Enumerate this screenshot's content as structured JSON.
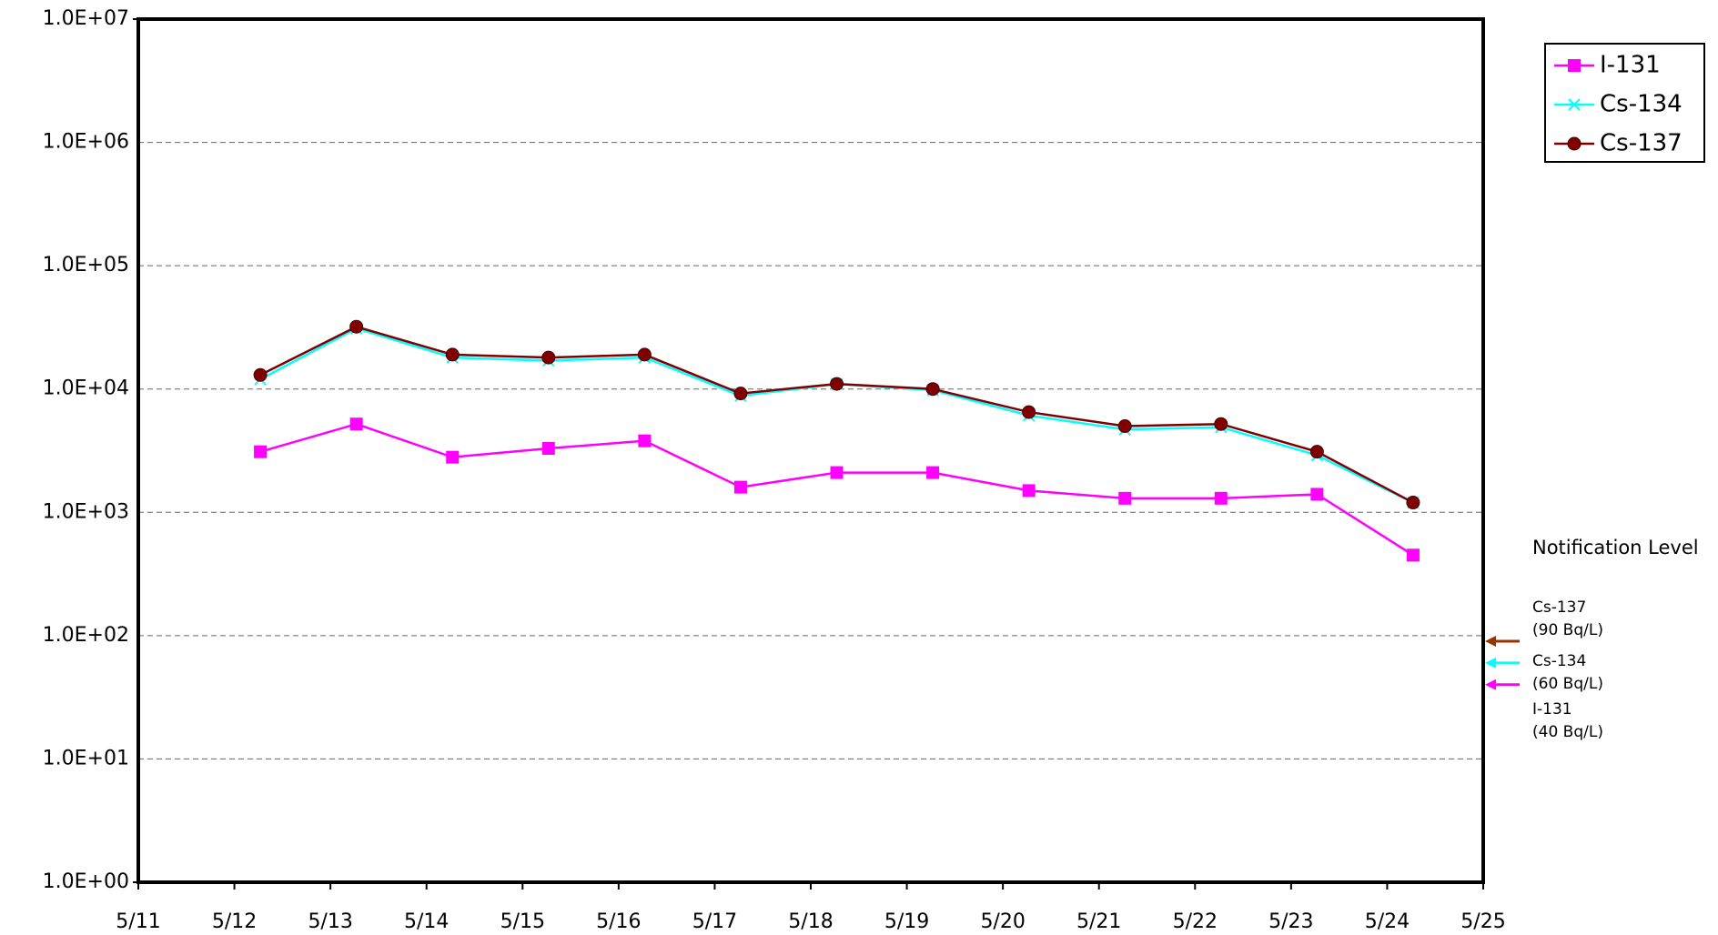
{
  "chart_data": {
    "type": "line",
    "xticks": [
      "5/11",
      "5/12",
      "5/13",
      "5/14",
      "5/15",
      "5/16",
      "5/17",
      "5/18",
      "5/19",
      "5/20",
      "5/21",
      "5/22",
      "5/23",
      "5/24",
      "5/25"
    ],
    "log_scale": true,
    "ylim": [
      1,
      10000000
    ],
    "yticks": [
      {
        "value": 1,
        "label": "1.0E+00"
      },
      {
        "value": 10,
        "label": "1.0E+01"
      },
      {
        "value": 100,
        "label": "1.0E+02"
      },
      {
        "value": 1000,
        "label": "1.0E+03"
      },
      {
        "value": 10000,
        "label": "1.0E+04"
      },
      {
        "value": 100000,
        "label": "1.0E+05"
      },
      {
        "value": 1000000,
        "label": "1.0E+06"
      },
      {
        "value": 10000000,
        "label": "1.0E+07"
      }
    ],
    "grid": true,
    "legend": "top-right",
    "series": [
      {
        "name": "I-131",
        "color": "#ff00ff",
        "marker": "square",
        "values": [
          3100,
          5200,
          2800,
          3300,
          3800,
          1600,
          2100,
          2100,
          1500,
          1300,
          1300,
          1400,
          450
        ]
      },
      {
        "name": "Cs-134",
        "color": "#00ffff",
        "marker": "x",
        "values": [
          12000,
          31000,
          18000,
          17000,
          18000,
          8800,
          11000,
          9800,
          6100,
          4700,
          4900,
          2900,
          1200
        ]
      },
      {
        "name": "Cs-137",
        "color": "#800000",
        "marker": "circle",
        "values": [
          13000,
          32000,
          19000,
          18000,
          19000,
          9200,
          11000,
          10000,
          6500,
          5000,
          5200,
          3100,
          1200
        ]
      }
    ],
    "annotation_title": "Notification Level",
    "notification_levels": [
      {
        "name": "Cs-137",
        "label": "(90 Bq/L)",
        "value": 90,
        "color": "#993300"
      },
      {
        "name": "Cs-134",
        "label": "(60 Bq/L)",
        "value": 60,
        "color": "#00ffff"
      },
      {
        "name": "I-131",
        "label": "(40 Bq/L)",
        "value": 40,
        "color": "#ff00ff"
      }
    ]
  }
}
